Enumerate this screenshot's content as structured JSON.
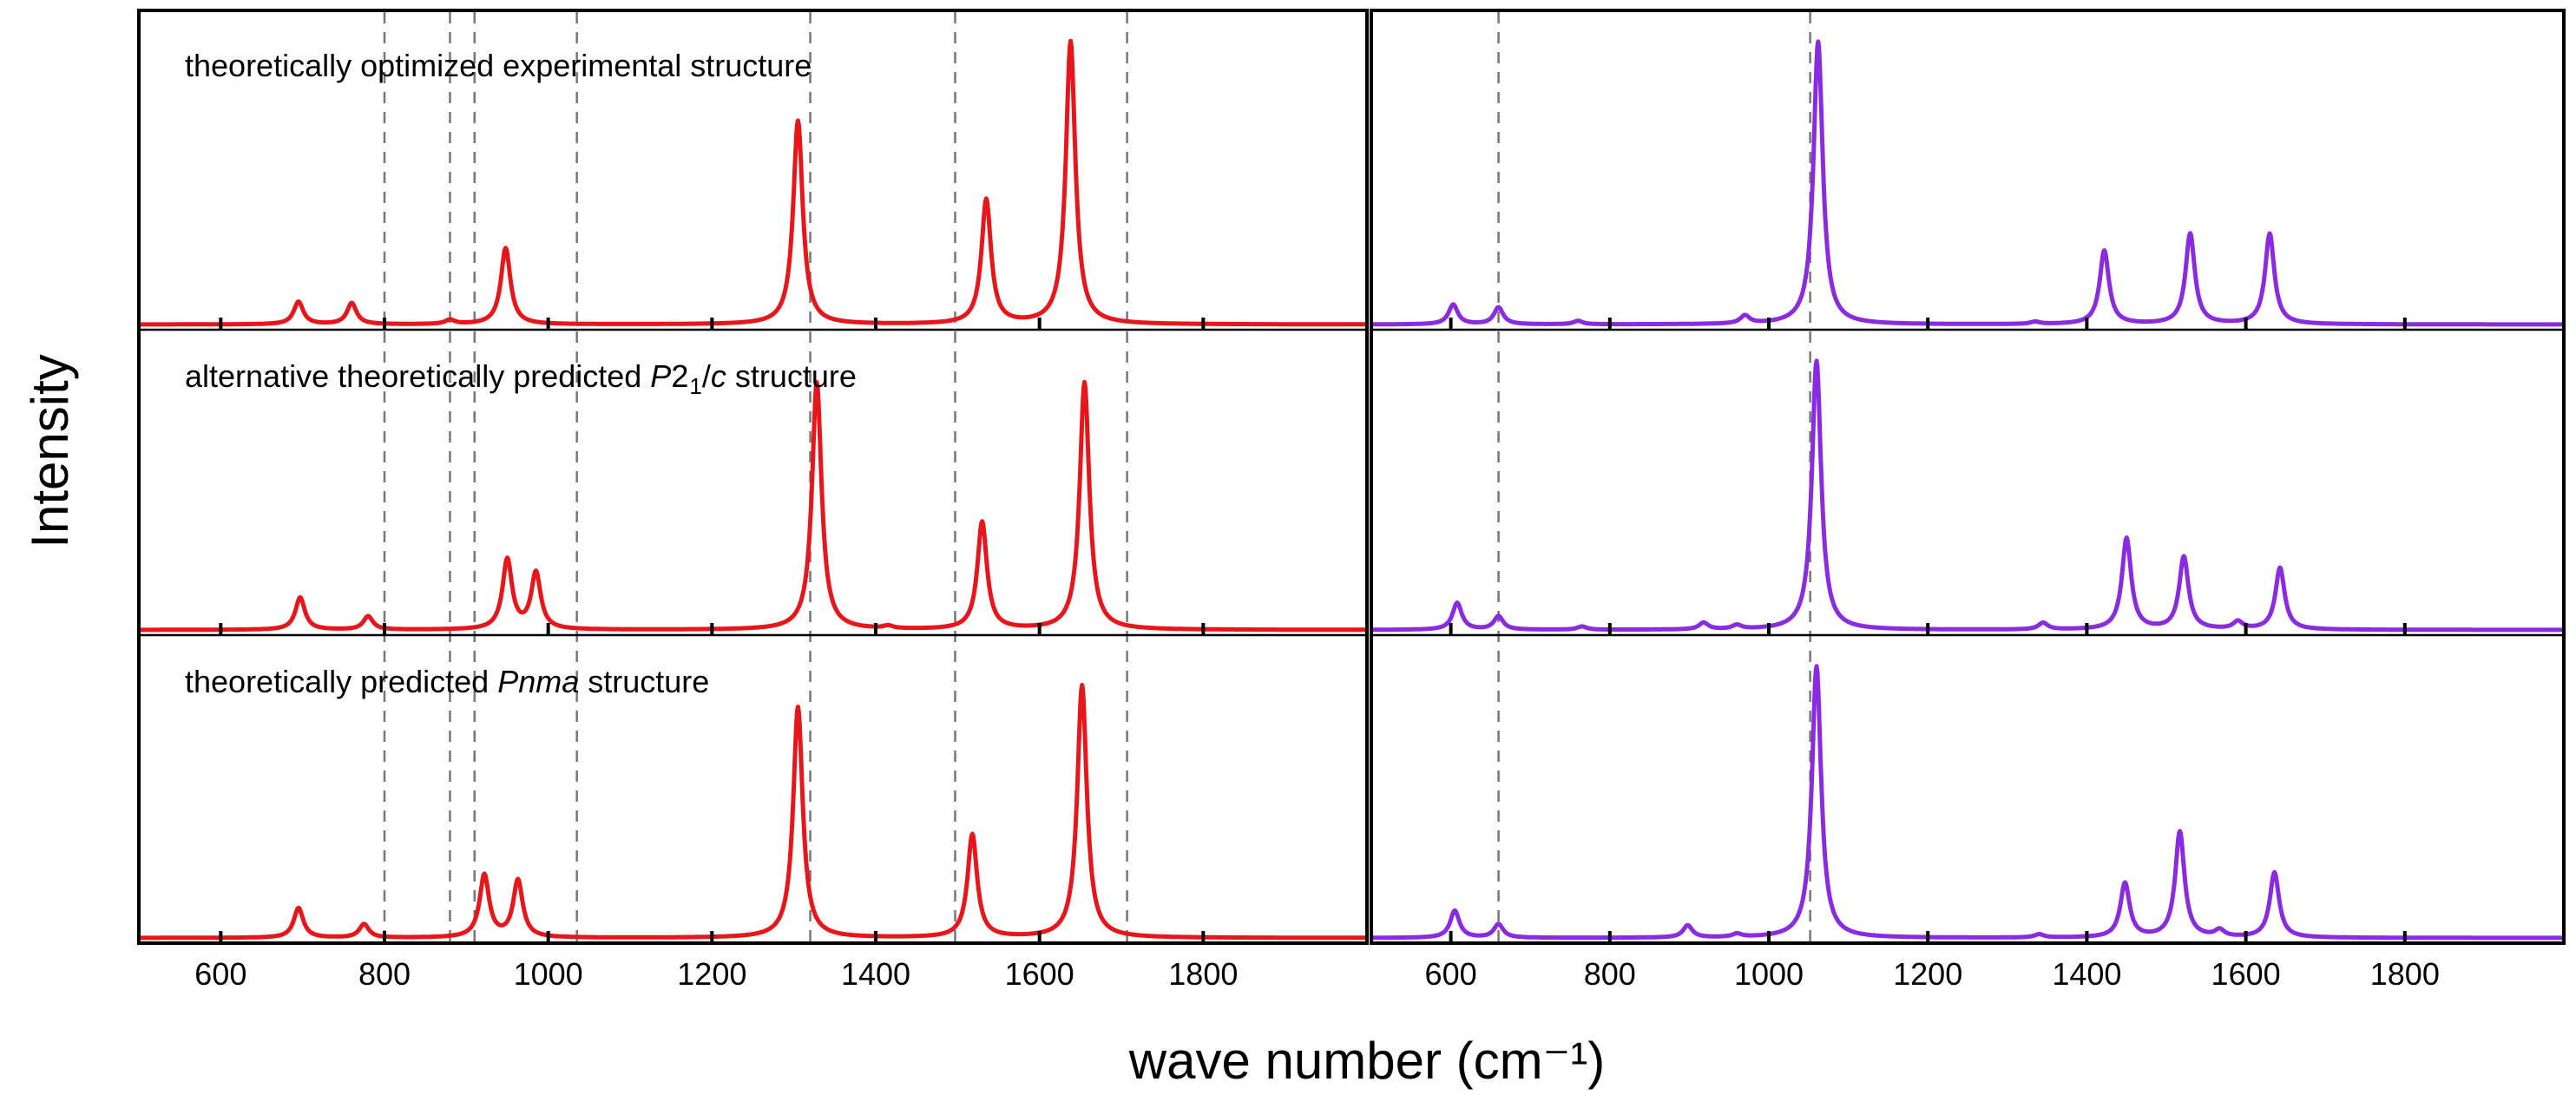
{
  "chart_data": [
    {
      "type": "line",
      "panel": "left",
      "color": "#e8161b",
      "xlabel": "wave number (cm⁻¹)",
      "ylabel": "Intensity",
      "xlim": [
        500,
        2000
      ],
      "x_ticks": [
        600,
        800,
        1000,
        1200,
        1400,
        1600,
        1800
      ],
      "x_tick_labels": [
        "600",
        "800",
        "1000",
        "1200",
        "1400",
        "1600",
        "1800"
      ],
      "reference_lines": [
        800,
        880,
        910,
        1035,
        1320,
        1497,
        1707
      ],
      "ylim": [
        0,
        1
      ],
      "series": [
        {
          "name": "theoretically optimized experimental structure",
          "label_parts": [
            {
              "t": "theoretically optimized experimental structure"
            }
          ],
          "peaks": [
            [
              695,
              0.08
            ],
            [
              760,
              0.075
            ],
            [
              880,
              0.015
            ],
            [
              948,
              0.27
            ],
            [
              1305,
              0.72
            ],
            [
              1535,
              0.44
            ],
            [
              1638,
              1.0
            ]
          ]
        },
        {
          "name": "alternative theoretically predicted P2₁/c structure",
          "label_parts": [
            {
              "t": "alternative theoretically predicted "
            },
            {
              "t": "P",
              "style": "italic"
            },
            {
              "t": "2"
            },
            {
              "t": "1",
              "style": "sub"
            },
            {
              "t": "/"
            },
            {
              "t": "c",
              "style": "italic"
            },
            {
              "t": " structure"
            }
          ],
          "peaks": [
            [
              697,
              0.12
            ],
            [
              780,
              0.05
            ],
            [
              950,
              0.26
            ],
            [
              985,
              0.21
            ],
            [
              1328,
              0.92
            ],
            [
              1415,
              0.01
            ],
            [
              1530,
              0.4
            ],
            [
              1655,
              0.92
            ]
          ]
        },
        {
          "name": "theoretically predicted Pnma structure",
          "label_parts": [
            {
              "t": "theoretically predicted "
            },
            {
              "t": "Pnma",
              "style": "italic"
            },
            {
              "t": " structure"
            }
          ],
          "peaks": [
            [
              695,
              0.11
            ],
            [
              775,
              0.05
            ],
            [
              922,
              0.23
            ],
            [
              963,
              0.21
            ],
            [
              1305,
              0.85
            ],
            [
              1518,
              0.38
            ],
            [
              1652,
              0.93
            ]
          ]
        }
      ]
    },
    {
      "type": "line",
      "panel": "right",
      "color": "#8a2be2",
      "xlabel": "wave number (cm⁻¹)",
      "xlim": [
        500,
        2000
      ],
      "x_ticks": [
        600,
        800,
        1000,
        1200,
        1400,
        1600,
        1800
      ],
      "x_tick_labels": [
        "600",
        "800",
        "1000",
        "1200",
        "1400",
        "1600",
        "1800"
      ],
      "reference_lines": [
        660,
        1052
      ],
      "ylim": [
        0,
        1
      ],
      "series": [
        {
          "name": "theoretically optimized experimental structure",
          "peaks": [
            [
              603,
              0.07
            ],
            [
              660,
              0.06
            ],
            [
              760,
              0.012
            ],
            [
              970,
              0.028
            ],
            [
              1062,
              1.0
            ],
            [
              1335,
              0.008
            ],
            [
              1422,
              0.26
            ],
            [
              1530,
              0.32
            ],
            [
              1630,
              0.32
            ]
          ]
        },
        {
          "name": "alternative theoretically predicted P2₁/c structure",
          "peaks": [
            [
              608,
              0.1
            ],
            [
              660,
              0.05
            ],
            [
              765,
              0.012
            ],
            [
              918,
              0.025
            ],
            [
              960,
              0.015
            ],
            [
              1060,
              1.0
            ],
            [
              1345,
              0.025
            ],
            [
              1450,
              0.34
            ],
            [
              1522,
              0.27
            ],
            [
              1590,
              0.028
            ],
            [
              1643,
              0.23
            ]
          ]
        },
        {
          "name": "theoretically predicted Pnma structure",
          "peaks": [
            [
              605,
              0.1
            ],
            [
              660,
              0.05
            ],
            [
              898,
              0.045
            ],
            [
              960,
              0.012
            ],
            [
              1060,
              1.0
            ],
            [
              1340,
              0.012
            ],
            [
              1448,
              0.2
            ],
            [
              1517,
              0.39
            ],
            [
              1567,
              0.025
            ],
            [
              1636,
              0.24
            ]
          ]
        }
      ]
    }
  ]
}
